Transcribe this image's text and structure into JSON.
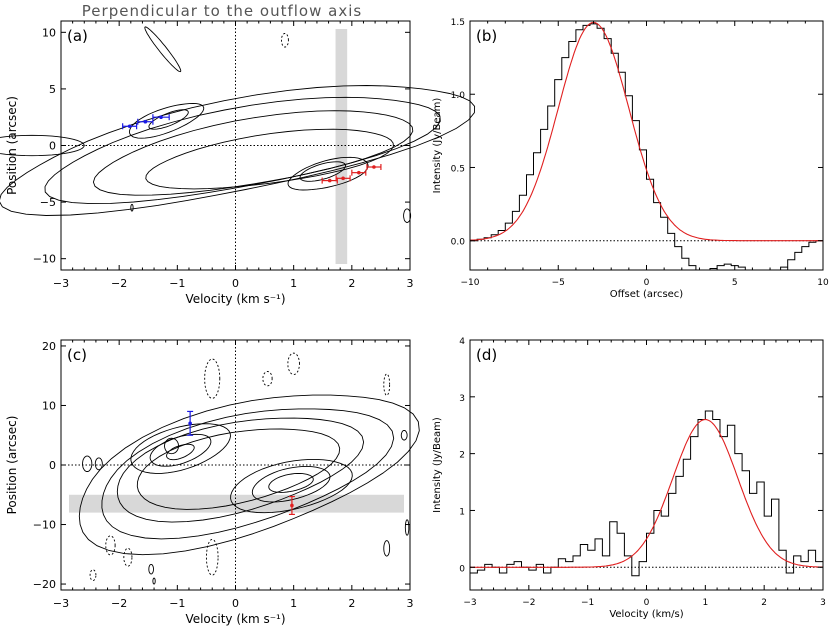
{
  "title": "Perpendicular to the outflow axis",
  "colors": {
    "blue": "#1a1ae6",
    "red": "#e02020",
    "band": "#d8d8d8"
  },
  "chart_data": [
    {
      "id": "a",
      "type": "contour",
      "label": "(a)",
      "xlabel": "Velocity (km s⁻¹)",
      "ylabel": "Position (arcsec)",
      "xlim": [
        -3,
        3
      ],
      "ylim": [
        -11,
        11
      ],
      "xticks": [
        -3,
        -2,
        -1,
        0,
        1,
        2,
        3
      ],
      "yticks": [
        -10,
        -5,
        0,
        5,
        10
      ],
      "xtick_labels": [
        "−3",
        "−2",
        "−1",
        "0",
        "1",
        "2",
        "3"
      ],
      "ytick_labels": [
        "−10",
        "−5",
        "0",
        "5",
        "10"
      ],
      "band": {
        "orientation": "vertical",
        "range": [
          1.72,
          1.92
        ]
      },
      "blue_points": [
        {
          "x": -1.82,
          "y": 1.7,
          "xerr": 0.12
        },
        {
          "x": -1.55,
          "y": 2.1,
          "xerr": 0.13
        },
        {
          "x": -1.28,
          "y": 2.5,
          "xerr": 0.14
        }
      ],
      "red_points": [
        {
          "x": 1.62,
          "y": -3.1,
          "xerr": 0.13
        },
        {
          "x": 1.85,
          "y": -2.9,
          "xerr": 0.12
        },
        {
          "x": 2.12,
          "y": -2.4,
          "xerr": 0.12
        },
        {
          "x": 2.38,
          "y": -1.9,
          "xerr": 0.12
        }
      ]
    },
    {
      "id": "b",
      "type": "step+line",
      "label": "(b)",
      "xlabel": "Offset (arcsec)",
      "ylabel": "Intensity (Jy/Beam)",
      "xlim": [
        -10,
        10
      ],
      "ylim": [
        -0.2,
        1.5
      ],
      "xticks": [
        -10,
        -5,
        0,
        5,
        10
      ],
      "yticks": [
        0,
        0.5,
        1.0,
        1.5
      ],
      "xtick_labels": [
        "−10",
        "−5",
        "0",
        "5",
        "10"
      ],
      "ytick_labels": [
        "0.0",
        "0.5",
        "1.0",
        "1.5"
      ],
      "fit": {
        "model": "gaussian",
        "amplitude": 1.49,
        "center": -3.0,
        "sigma": 2.0
      },
      "histogram": {
        "x": [
          -10,
          -9.6,
          -9.2,
          -8.8,
          -8.4,
          -8,
          -7.6,
          -7.2,
          -6.8,
          -6.4,
          -6,
          -5.6,
          -5.2,
          -4.8,
          -4.4,
          -4,
          -3.6,
          -3.2,
          -2.8,
          -2.4,
          -2,
          -1.6,
          -1.2,
          -0.8,
          -0.4,
          0,
          0.4,
          0.8,
          1.2,
          1.6,
          2,
          2.4,
          2.8,
          3.2,
          3.6,
          4,
          4.4,
          4.8,
          5.2,
          5.6,
          6,
          6.4,
          6.8,
          7.2,
          7.6,
          8,
          8.4,
          8.8,
          9.2,
          9.6
        ],
        "values": [
          0.0,
          0.01,
          0.02,
          0.04,
          0.07,
          0.12,
          0.2,
          0.31,
          0.45,
          0.6,
          0.76,
          0.92,
          1.1,
          1.25,
          1.36,
          1.44,
          1.47,
          1.48,
          1.45,
          1.38,
          1.28,
          1.15,
          0.99,
          0.82,
          0.62,
          0.42,
          0.26,
          0.16,
          0.05,
          -0.04,
          -0.12,
          -0.17,
          -0.2,
          -0.2,
          -0.19,
          -0.17,
          -0.16,
          -0.17,
          -0.18,
          -0.2,
          -0.2,
          -0.2,
          -0.2,
          -0.2,
          -0.18,
          -0.13,
          -0.08,
          -0.04,
          -0.01,
          0.0
        ]
      }
    },
    {
      "id": "c",
      "type": "contour",
      "label": "(c)",
      "xlabel": "Velocity (km s⁻¹)",
      "ylabel": "Position (arcsec)",
      "xlim": [
        -3,
        3
      ],
      "ylim": [
        -21,
        21
      ],
      "xticks": [
        -3,
        -2,
        -1,
        0,
        1,
        2,
        3
      ],
      "yticks": [
        -20,
        -10,
        0,
        10,
        20
      ],
      "xtick_labels": [
        "−3",
        "−2",
        "−1",
        "0",
        "1",
        "2",
        "3"
      ],
      "ytick_labels": [
        "−20",
        "−10",
        "0",
        "10",
        "20"
      ],
      "band": {
        "orientation": "horizontal",
        "range": [
          -8,
          -5
        ]
      },
      "blue_points": [
        {
          "x": -0.78,
          "y": 7.0,
          "yerr": 2.0
        }
      ],
      "red_points": [
        {
          "x": 0.97,
          "y": -6.8,
          "yerr": 1.5
        }
      ]
    },
    {
      "id": "d",
      "type": "step+line",
      "label": "(d)",
      "xlabel": "Velocity (km/s)",
      "ylabel": "Intensity (Jy/Beam)",
      "xlim": [
        -3,
        3
      ],
      "ylim": [
        -0.4,
        4
      ],
      "xticks": [
        -3,
        -2,
        -1,
        0,
        1,
        2,
        3
      ],
      "yticks": [
        0,
        1,
        2,
        3,
        4
      ],
      "xtick_labels": [
        "−3",
        "−2",
        "−1",
        "0",
        "1",
        "2",
        "3"
      ],
      "ytick_labels": [
        "0",
        "1",
        "2",
        "3",
        "4"
      ],
      "fit": {
        "model": "gaussian",
        "amplitude": 2.6,
        "center": 1.0,
        "sigma": 0.55
      },
      "histogram": {
        "x": [
          -3,
          -2.875,
          -2.75,
          -2.625,
          -2.5,
          -2.375,
          -2.25,
          -2.125,
          -2,
          -1.875,
          -1.75,
          -1.625,
          -1.5,
          -1.375,
          -1.25,
          -1.125,
          -1,
          -0.875,
          -0.75,
          -0.625,
          -0.5,
          -0.375,
          -0.25,
          -0.125,
          0,
          0.125,
          0.25,
          0.375,
          0.5,
          0.625,
          0.75,
          0.875,
          1,
          1.125,
          1.25,
          1.375,
          1.5,
          1.625,
          1.75,
          1.875,
          2,
          2.125,
          2.25,
          2.375,
          2.5,
          2.625,
          2.75,
          2.875
        ],
        "values": [
          -0.1,
          -0.05,
          0.05,
          0.0,
          -0.1,
          0.05,
          0.1,
          0.0,
          -0.05,
          0.05,
          -0.1,
          0.0,
          0.15,
          0.1,
          0.2,
          0.4,
          0.3,
          0.5,
          0.2,
          0.8,
          0.6,
          0.2,
          -0.15,
          0.1,
          0.6,
          1.0,
          0.9,
          1.3,
          1.6,
          1.9,
          2.3,
          2.6,
          2.75,
          2.6,
          2.3,
          2.5,
          2.0,
          1.7,
          1.3,
          1.5,
          0.9,
          1.2,
          0.3,
          -0.1,
          0.2,
          0.1,
          0.3,
          0.1
        ]
      }
    }
  ]
}
